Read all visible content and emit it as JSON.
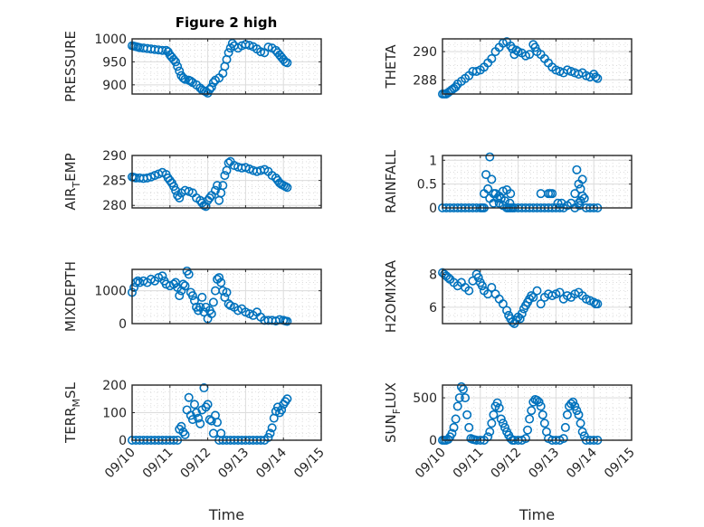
{
  "figure": {
    "title": "Figure 2 high",
    "marker_color": "#0072BD"
  },
  "chart_data": [
    {
      "type": "scatter",
      "id": "pressure",
      "title": "Figure 2 high",
      "ylabel": "PRESSURE",
      "ylabel_sub": null,
      "ylim": [
        880,
        1000
      ],
      "yticks": [
        900,
        950,
        1000
      ],
      "xlim": [
        0,
        5
      ],
      "xticks": [
        "09/10",
        "09/11",
        "09/12",
        "09/13",
        "09/14",
        "09/15"
      ],
      "xlabel": "",
      "x": [
        0,
        0.05,
        0.1,
        0.15,
        0.2,
        0.3,
        0.4,
        0.5,
        0.6,
        0.7,
        0.8,
        0.9,
        0.95,
        1.0,
        1.05,
        1.1,
        1.15,
        1.2,
        1.25,
        1.3,
        1.35,
        1.4,
        1.5,
        1.55,
        1.6,
        1.7,
        1.8,
        1.85,
        1.9,
        1.95,
        2.0,
        2.05,
        2.1,
        2.15,
        2.2,
        2.3,
        2.4,
        2.45,
        2.5,
        2.55,
        2.6,
        2.65,
        2.7,
        2.8,
        2.9,
        3.0,
        3.1,
        3.2,
        3.3,
        3.4,
        3.5,
        3.6,
        3.7,
        3.8,
        3.85,
        3.9,
        3.95,
        4.0,
        4.05,
        4.1
      ],
      "y": [
        985,
        984,
        983,
        982,
        981,
        980,
        979,
        978,
        977,
        976,
        975,
        975,
        972,
        965,
        960,
        955,
        950,
        940,
        930,
        920,
        915,
        912,
        910,
        908,
        905,
        900,
        893,
        889,
        887,
        885,
        882,
        890,
        895,
        905,
        910,
        915,
        925,
        940,
        955,
        970,
        980,
        990,
        985,
        980,
        985,
        988,
        986,
        983,
        978,
        972,
        970,
        982,
        980,
        975,
        970,
        965,
        960,
        955,
        950,
        948
      ]
    },
    {
      "type": "scatter",
      "id": "theta",
      "title": "",
      "ylabel": "THETA",
      "ylabel_sub": null,
      "ylim": [
        287,
        290.9
      ],
      "yticks": [
        288,
        290
      ],
      "xlim": [
        0,
        5
      ],
      "xticks": [
        "09/10",
        "09/11",
        "09/12",
        "09/13",
        "09/14",
        "09/15"
      ],
      "xlabel": "",
      "x": [
        0,
        0.05,
        0.1,
        0.15,
        0.2,
        0.25,
        0.3,
        0.35,
        0.4,
        0.5,
        0.6,
        0.7,
        0.8,
        0.9,
        1.0,
        1.1,
        1.2,
        1.3,
        1.4,
        1.5,
        1.6,
        1.7,
        1.8,
        1.85,
        1.9,
        1.95,
        2.0,
        2.1,
        2.2,
        2.3,
        2.4,
        2.45,
        2.5,
        2.6,
        2.7,
        2.8,
        2.9,
        3.0,
        3.1,
        3.2,
        3.3,
        3.4,
        3.5,
        3.6,
        3.7,
        3.8,
        3.9,
        4.0,
        4.05,
        4.1
      ],
      "y": [
        287.0,
        287.0,
        287.0,
        287.1,
        287.2,
        287.3,
        287.4,
        287.5,
        287.7,
        287.9,
        288.1,
        288.3,
        288.6,
        288.6,
        288.7,
        288.9,
        289.2,
        289.5,
        290.0,
        290.3,
        290.6,
        290.7,
        290.4,
        290.2,
        289.8,
        290.1,
        290.0,
        289.9,
        289.7,
        289.8,
        290.5,
        290.3,
        290.0,
        289.8,
        289.5,
        289.2,
        288.9,
        288.7,
        288.6,
        288.5,
        288.7,
        288.6,
        288.5,
        288.4,
        288.5,
        288.3,
        288.2,
        288.4,
        288.2,
        288.1
      ]
    },
    {
      "type": "scatter",
      "id": "air_temp",
      "title": "",
      "ylabel": "AIR",
      "ylabel_sub": "T",
      "ylabel_rest": "EMP",
      "ylim": [
        279.5,
        290
      ],
      "yticks": [
        280,
        285,
        290
      ],
      "xlim": [
        0,
        5
      ],
      "xticks": [
        "09/10",
        "09/11",
        "09/12",
        "09/13",
        "09/14",
        "09/15"
      ],
      "xlabel": "",
      "x": [
        0,
        0.05,
        0.1,
        0.2,
        0.3,
        0.4,
        0.5,
        0.6,
        0.7,
        0.8,
        0.9,
        0.95,
        1.0,
        1.05,
        1.1,
        1.15,
        1.2,
        1.25,
        1.3,
        1.4,
        1.5,
        1.6,
        1.7,
        1.8,
        1.85,
        1.9,
        1.95,
        2.0,
        2.05,
        2.1,
        2.2,
        2.25,
        2.3,
        2.35,
        2.4,
        2.45,
        2.5,
        2.55,
        2.6,
        2.7,
        2.8,
        2.9,
        3.0,
        3.1,
        3.2,
        3.3,
        3.4,
        3.5,
        3.6,
        3.7,
        3.8,
        3.85,
        3.9,
        3.95,
        4.0,
        4.05,
        4.1
      ],
      "y": [
        285.7,
        285.6,
        285.5,
        285.5,
        285.4,
        285.5,
        285.7,
        286.0,
        286.3,
        286.6,
        286.2,
        285.5,
        285.0,
        284.5,
        283.8,
        283.0,
        282.0,
        281.5,
        282.5,
        283.0,
        282.8,
        282.5,
        281.5,
        281.0,
        280.5,
        280.0,
        279.8,
        281.0,
        281.5,
        282.0,
        283.0,
        284.0,
        281.0,
        282.5,
        284.0,
        286.0,
        287.0,
        288.5,
        288.8,
        288.0,
        287.7,
        287.5,
        287.6,
        287.3,
        287.0,
        286.8,
        287.0,
        287.2,
        286.8,
        286.0,
        285.5,
        285.0,
        284.5,
        284.2,
        284.0,
        283.8,
        283.6
      ]
    },
    {
      "type": "scatter",
      "id": "rainfall",
      "title": "",
      "ylabel": "RAINFALL",
      "ylabel_sub": null,
      "ylim": [
        0,
        1.1
      ],
      "yticks": [
        0,
        0.5,
        1
      ],
      "xlim": [
        0,
        5
      ],
      "xticks": [
        "09/10",
        "09/11",
        "09/12",
        "09/13",
        "09/14",
        "09/15"
      ],
      "xlabel": "",
      "x": [
        0,
        0.1,
        0.2,
        0.3,
        0.4,
        0.5,
        0.6,
        0.7,
        0.8,
        0.9,
        1.0,
        1.05,
        1.1,
        1.15,
        1.2,
        1.25,
        1.3,
        1.35,
        1.4,
        1.45,
        1.5,
        1.55,
        1.6,
        1.65,
        1.7,
        1.75,
        1.8,
        1.85,
        1.9,
        2.0,
        2.1,
        2.2,
        2.3,
        2.4,
        2.5,
        2.6,
        2.7,
        2.8,
        2.9,
        3.0,
        3.05,
        3.1,
        3.15,
        3.2,
        3.3,
        3.4,
        3.5,
        3.55,
        3.6,
        3.65,
        3.7,
        3.75,
        3.8,
        3.9,
        4.0,
        4.1,
        1.1,
        1.25,
        1.5,
        1.35,
        1.6,
        1.7,
        1.78,
        1.8,
        2.6,
        2.8,
        2.85,
        2.9,
        3.5,
        3.6,
        3.62,
        3.65,
        3.7
      ],
      "y": [
        0,
        0,
        0,
        0,
        0,
        0,
        0,
        0,
        0,
        0,
        0,
        0,
        0.3,
        0.7,
        0.4,
        0.2,
        0.6,
        0.1,
        0.3,
        0.2,
        0.1,
        0.2,
        0.05,
        0.15,
        0,
        0,
        0,
        0,
        0,
        0,
        0,
        0,
        0,
        0,
        0,
        0,
        0,
        0,
        0,
        0,
        0.1,
        0,
        0.1,
        0,
        0.05,
        0.1,
        0,
        0.8,
        0.5,
        0.4,
        0.6,
        0.2,
        0,
        0,
        0,
        0,
        0,
        1.07,
        0.25,
        0.3,
        0.35,
        0.38,
        0.1,
        0.3,
        0.3,
        0.3,
        0.3,
        0.3,
        0.3,
        0.1,
        0.05,
        0.15,
        0.25
      ]
    },
    {
      "type": "scatter",
      "id": "mixdepth",
      "title": "",
      "ylabel": "MIXDEPTH",
      "ylabel_sub": null,
      "ylim": [
        0,
        1650
      ],
      "yticks": [
        0,
        1000
      ],
      "xlim": [
        0,
        5
      ],
      "xticks": [
        "09/10",
        "09/11",
        "09/12",
        "09/13",
        "09/14",
        "09/15"
      ],
      "xlabel": "",
      "x": [
        0,
        0.05,
        0.1,
        0.15,
        0.2,
        0.3,
        0.4,
        0.5,
        0.6,
        0.7,
        0.8,
        0.85,
        0.9,
        1.0,
        1.1,
        1.15,
        1.2,
        1.25,
        1.3,
        1.35,
        1.4,
        1.45,
        1.5,
        1.55,
        1.6,
        1.65,
        1.7,
        1.75,
        1.8,
        1.85,
        1.9,
        1.95,
        2.0,
        2.05,
        2.1,
        2.15,
        2.2,
        2.25,
        2.3,
        2.35,
        2.4,
        2.45,
        2.5,
        2.55,
        2.6,
        2.7,
        2.8,
        2.9,
        3.0,
        3.1,
        3.2,
        3.3,
        3.4,
        3.5,
        3.6,
        3.7,
        3.8,
        3.9,
        4.0,
        4.05,
        4.1
      ],
      "y": [
        950,
        1100,
        1250,
        1300,
        1250,
        1300,
        1250,
        1350,
        1300,
        1400,
        1450,
        1300,
        1200,
        1150,
        1200,
        1250,
        1100,
        850,
        1000,
        1200,
        1150,
        1600,
        1500,
        950,
        850,
        700,
        500,
        400,
        500,
        800,
        350,
        500,
        150,
        400,
        300,
        650,
        1000,
        1350,
        1400,
        1250,
        1000,
        800,
        950,
        600,
        550,
        500,
        400,
        450,
        350,
        300,
        250,
        350,
        200,
        100,
        100,
        100,
        80,
        120,
        100,
        80,
        70
      ]
    },
    {
      "type": "scatter",
      "id": "h2omixra",
      "title": "",
      "ylabel": "H2OMIXRA",
      "ylabel_sub": null,
      "ylim": [
        5,
        8.3
      ],
      "yticks": [
        6,
        8
      ],
      "xlim": [
        0,
        5
      ],
      "xticks": [
        "09/10",
        "09/11",
        "09/12",
        "09/13",
        "09/14",
        "09/15"
      ],
      "xlabel": "",
      "x": [
        0,
        0.05,
        0.1,
        0.15,
        0.2,
        0.3,
        0.4,
        0.5,
        0.6,
        0.7,
        0.8,
        0.9,
        0.95,
        1.0,
        1.05,
        1.1,
        1.2,
        1.3,
        1.4,
        1.5,
        1.6,
        1.7,
        1.75,
        1.8,
        1.85,
        1.9,
        1.95,
        2.0,
        2.05,
        2.1,
        2.15,
        2.2,
        2.25,
        2.3,
        2.35,
        2.4,
        2.5,
        2.6,
        2.7,
        2.8,
        2.9,
        3.0,
        3.1,
        3.2,
        3.3,
        3.4,
        3.5,
        3.6,
        3.7,
        3.8,
        3.9,
        4.0,
        4.05,
        4.1
      ],
      "y": [
        8.1,
        8.0,
        7.9,
        7.8,
        7.7,
        7.5,
        7.3,
        7.5,
        7.2,
        7.0,
        7.6,
        8.0,
        7.8,
        7.5,
        7.3,
        7.0,
        6.8,
        7.2,
        6.8,
        6.5,
        6.2,
        5.8,
        5.5,
        5.3,
        5.1,
        5.0,
        5.2,
        5.4,
        5.3,
        5.6,
        5.9,
        6.1,
        6.3,
        6.5,
        6.7,
        6.6,
        7.0,
        6.2,
        6.6,
        6.8,
        6.7,
        6.8,
        6.9,
        6.5,
        6.7,
        6.6,
        6.8,
        6.9,
        6.7,
        6.5,
        6.4,
        6.3,
        6.2,
        6.2
      ]
    },
    {
      "type": "scatter",
      "id": "terr_msl",
      "title": "",
      "ylabel": "TERR",
      "ylabel_sub": "M",
      "ylabel_rest": "SL",
      "ylim": [
        0,
        200
      ],
      "yticks": [
        0,
        100,
        200
      ],
      "xlim": [
        0,
        5
      ],
      "xticks": [
        "09/10",
        "09/11",
        "09/12",
        "09/13",
        "09/14",
        "09/15"
      ],
      "xlabel": "Time",
      "x": [
        0,
        0.1,
        0.2,
        0.3,
        0.4,
        0.5,
        0.6,
        0.7,
        0.8,
        0.9,
        1.0,
        1.1,
        1.2,
        1.25,
        1.3,
        1.35,
        1.4,
        1.45,
        1.5,
        1.55,
        1.6,
        1.65,
        1.7,
        1.75,
        1.8,
        1.85,
        1.9,
        1.95,
        2.0,
        2.05,
        2.1,
        2.15,
        2.2,
        2.25,
        2.3,
        2.35,
        2.4,
        2.5,
        2.6,
        2.7,
        2.8,
        2.9,
        3.0,
        3.1,
        3.2,
        3.3,
        3.4,
        3.5,
        3.6,
        3.65,
        3.7,
        3.75,
        3.8,
        3.85,
        3.9,
        3.95,
        4.0,
        4.05,
        4.1
      ],
      "y": [
        0,
        0,
        0,
        0,
        0,
        0,
        0,
        0,
        0,
        0,
        0,
        0,
        0,
        40,
        50,
        30,
        20,
        110,
        155,
        90,
        75,
        130,
        100,
        80,
        60,
        110,
        190,
        120,
        130,
        75,
        70,
        25,
        90,
        65,
        0,
        25,
        0,
        0,
        0,
        0,
        0,
        0,
        0,
        0,
        0,
        0,
        0,
        0,
        10,
        25,
        45,
        80,
        105,
        120,
        100,
        110,
        130,
        140,
        150
      ]
    },
    {
      "type": "scatter",
      "id": "sun_flux",
      "title": "",
      "ylabel": "SUN",
      "ylabel_sub": "F",
      "ylabel_rest": "LUX",
      "ylim": [
        0,
        650
      ],
      "yticks": [
        0,
        500
      ],
      "xlim": [
        0,
        5
      ],
      "xticks": [
        "09/10",
        "09/11",
        "09/12",
        "09/13",
        "09/14",
        "09/15"
      ],
      "xlabel": "Time",
      "x": [
        0,
        0.05,
        0.1,
        0.15,
        0.2,
        0.25,
        0.3,
        0.35,
        0.4,
        0.45,
        0.5,
        0.55,
        0.6,
        0.65,
        0.7,
        0.75,
        0.8,
        0.85,
        0.9,
        1.0,
        1.1,
        1.2,
        1.25,
        1.3,
        1.35,
        1.4,
        1.45,
        1.5,
        1.55,
        1.6,
        1.65,
        1.7,
        1.75,
        1.8,
        1.85,
        1.9,
        2.0,
        2.1,
        2.2,
        2.25,
        2.3,
        2.35,
        2.4,
        2.45,
        2.5,
        2.55,
        2.6,
        2.65,
        2.7,
        2.75,
        2.8,
        2.9,
        3.0,
        3.1,
        3.2,
        3.25,
        3.3,
        3.35,
        3.4,
        3.45,
        3.5,
        3.55,
        3.6,
        3.65,
        3.7,
        3.75,
        3.8,
        3.9,
        4.0,
        4.1
      ],
      "y": [
        0,
        0,
        0,
        10,
        40,
        80,
        150,
        250,
        400,
        500,
        630,
        600,
        500,
        300,
        150,
        20,
        10,
        5,
        0,
        0,
        0,
        40,
        100,
        200,
        300,
        400,
        440,
        380,
        250,
        200,
        150,
        100,
        60,
        20,
        0,
        0,
        0,
        0,
        20,
        120,
        250,
        350,
        450,
        480,
        470,
        450,
        400,
        300,
        200,
        100,
        20,
        0,
        0,
        0,
        20,
        150,
        300,
        400,
        430,
        450,
        400,
        350,
        300,
        200,
        100,
        50,
        0,
        0,
        0,
        0
      ]
    }
  ]
}
